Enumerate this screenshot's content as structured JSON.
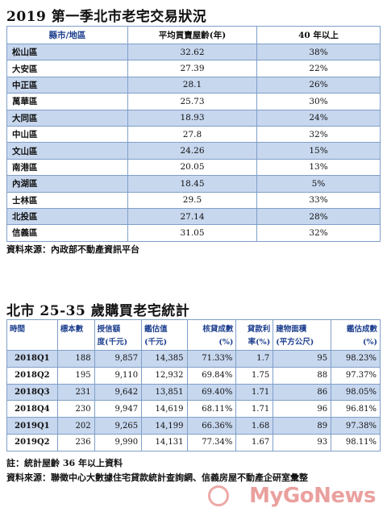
{
  "title1": "2019 第一季北市老宅交易狀況",
  "table1": {
    "headers": [
      "縣市/地區",
      "平均買賣屋齡(年)",
      "40 年以上"
    ],
    "rows": [
      [
        "松山區",
        "32.62",
        "38%"
      ],
      [
        "大安區",
        "27.39",
        "22%"
      ],
      [
        "中正區",
        "28.1",
        "26%"
      ],
      [
        "萬華區",
        "25.73",
        "30%"
      ],
      [
        "大同區",
        "18.93",
        "24%"
      ],
      [
        "中山區",
        "27.8",
        "32%"
      ],
      [
        "文山區",
        "24.26",
        "15%"
      ],
      [
        "南港區",
        "20.05",
        "13%"
      ],
      [
        "內湖區",
        "18.45",
        "5%"
      ],
      [
        "士林區",
        "29.5",
        "33%"
      ],
      [
        "北投區",
        "27.14",
        "28%"
      ],
      [
        "信義區",
        "31.05",
        "32%"
      ]
    ]
  },
  "source1": "資料來源：內政部不動產資訊平台",
  "title2": "北市 25-35 歲購買老宅統計",
  "table2": {
    "headers": [
      [
        "時間",
        ""
      ],
      [
        "標本數",
        ""
      ],
      [
        "授信額",
        "度(千元)"
      ],
      [
        "鑑估值",
        "(千元)"
      ],
      [
        "核貸成數",
        "(%)"
      ],
      [
        "貸款利",
        "率(%)"
      ],
      [
        "建物面積",
        "(平方公尺)"
      ],
      [
        "鑑估成數",
        "(%)"
      ]
    ],
    "rows": [
      [
        "2018Q1",
        "188",
        "9,857",
        "14,385",
        "71.33%",
        "1.7",
        "95",
        "98.23%"
      ],
      [
        "2018Q2",
        "195",
        "9,110",
        "12,932",
        "69.84%",
        "1.75",
        "88",
        "97.37%"
      ],
      [
        "2018Q3",
        "231",
        "9,642",
        "13,851",
        "69.40%",
        "1.71",
        "86",
        "98.05%"
      ],
      [
        "2018Q4",
        "230",
        "9,947",
        "14,619",
        "68.11%",
        "1.71",
        "96",
        "96.81%"
      ],
      [
        "2019Q1",
        "202",
        "9,265",
        "14,199",
        "66.36%",
        "1.68",
        "89",
        "97.38%"
      ],
      [
        "2019Q2",
        "236",
        "9,990",
        "14,131",
        "77.34%",
        "1.67",
        "93",
        "98.11%"
      ]
    ]
  },
  "note": "註：統計屋齡 36 年以上資料",
  "source2": "資料來源：聯徵中心大數據住宅貸款統計查詢網、信義房屋不動產企研室彙整",
  "watermark": "MyGoNews"
}
